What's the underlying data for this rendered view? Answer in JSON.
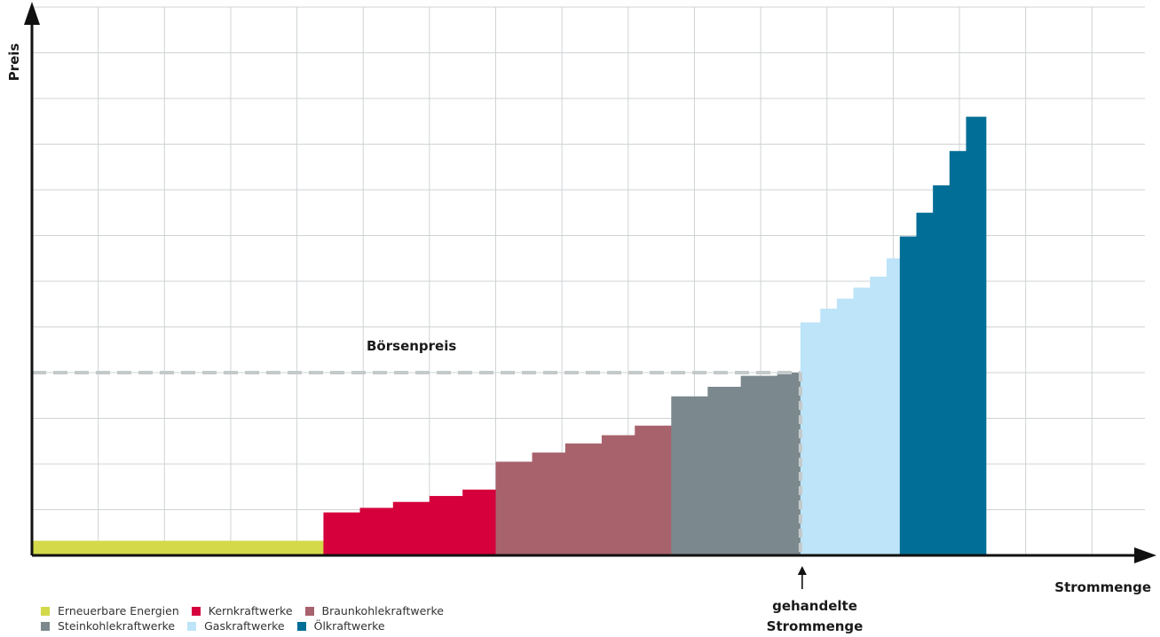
{
  "chart_data": {
    "type": "bar",
    "subtype": "merit-order-stepped",
    "ylabel": "Preis",
    "xlabel": "Strommenge",
    "price_label": "Börsenpreis",
    "traded_label_line1": "gehandelte",
    "traded_label_line2": "Strommenge",
    "xlim": [
      0,
      16.8
    ],
    "ylim": [
      0,
      12
    ],
    "grid": true,
    "market_price": 4,
    "traded_quantity": 11.6,
    "series": [
      {
        "name": "Erneuerbare Energien",
        "color": "#d4d94a",
        "segments": [
          {
            "x0": 0,
            "x1": 4.4,
            "y": 0.32
          }
        ]
      },
      {
        "name": "Kernkraftwerke",
        "color": "#d5003c",
        "segments": [
          {
            "x0": 4.4,
            "x1": 4.95,
            "y": 0.94
          },
          {
            "x0": 4.95,
            "x1": 5.45,
            "y": 1.04
          },
          {
            "x0": 5.45,
            "x1": 6,
            "y": 1.17
          },
          {
            "x0": 6,
            "x1": 6.5,
            "y": 1.3
          },
          {
            "x0": 6.5,
            "x1": 7,
            "y": 1.44
          }
        ]
      },
      {
        "name": "Braunkohlekraftwerke",
        "color": "#a8626c",
        "segments": [
          {
            "x0": 7,
            "x1": 7.55,
            "y": 2.05
          },
          {
            "x0": 7.55,
            "x1": 8.05,
            "y": 2.25
          },
          {
            "x0": 8.05,
            "x1": 8.6,
            "y": 2.45
          },
          {
            "x0": 8.6,
            "x1": 9.1,
            "y": 2.63
          },
          {
            "x0": 9.1,
            "x1": 9.65,
            "y": 2.84
          }
        ]
      },
      {
        "name": "Steinkohlekraftwerke",
        "color": "#7b888d",
        "segments": [
          {
            "x0": 9.65,
            "x1": 10.2,
            "y": 3.48
          },
          {
            "x0": 10.2,
            "x1": 10.7,
            "y": 3.69
          },
          {
            "x0": 10.7,
            "x1": 11.25,
            "y": 3.93
          },
          {
            "x0": 11.25,
            "x1": 11.6,
            "y": 4
          }
        ]
      },
      {
        "name": "Gaskraftwerke",
        "color": "#bde4f8",
        "segments": [
          {
            "x0": 11.6,
            "x1": 11.9,
            "y": 5.1
          },
          {
            "x0": 11.9,
            "x1": 12.15,
            "y": 5.4
          },
          {
            "x0": 12.15,
            "x1": 12.4,
            "y": 5.62
          },
          {
            "x0": 12.4,
            "x1": 12.65,
            "y": 5.86
          },
          {
            "x0": 12.65,
            "x1": 12.9,
            "y": 6.1
          },
          {
            "x0": 12.9,
            "x1": 13.1,
            "y": 6.5
          }
        ]
      },
      {
        "name": "Ölkraftwerke",
        "color": "#006e96",
        "segments": [
          {
            "x0": 13.1,
            "x1": 13.35,
            "y": 6.98
          },
          {
            "x0": 13.35,
            "x1": 13.6,
            "y": 7.5
          },
          {
            "x0": 13.6,
            "x1": 13.85,
            "y": 8.1
          },
          {
            "x0": 13.85,
            "x1": 14.1,
            "y": 8.85
          },
          {
            "x0": 14.1,
            "x1": 14.4,
            "y": 9.6
          }
        ]
      }
    ],
    "legend": [
      [
        {
          "label": "Erneuerbare Energien",
          "color": "#d4d94a"
        },
        {
          "label": "Kernkraftwerke",
          "color": "#d5003c"
        },
        {
          "label": "Braunkohlekraftwerke",
          "color": "#a8626c"
        }
      ],
      [
        {
          "label": "Steinkohlekraftwerke",
          "color": "#7b888d"
        },
        {
          "label": "Gaskraftwerke",
          "color": "#bde4f8"
        },
        {
          "label": "Ölkraftwerke",
          "color": "#006e96"
        }
      ]
    ]
  }
}
